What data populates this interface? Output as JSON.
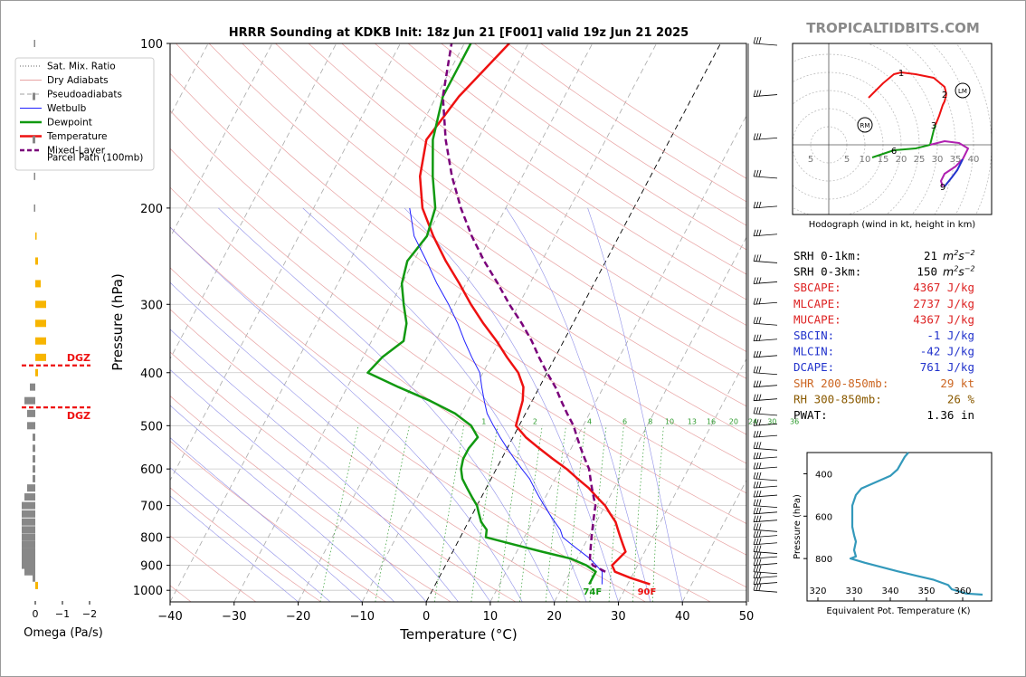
{
  "title": "HRRR Sounding at KDKB Init: 18z Jun 21 [F001] valid 19z Jun 21 2025",
  "brand": "TROPICALTIDBITS.COM",
  "legend": [
    {
      "label": "Sat. Mix. Ratio",
      "color": "#666666",
      "style": "dotted"
    },
    {
      "label": "Dry Adiabats",
      "color": "#e8a3a3",
      "style": "solid"
    },
    {
      "label": "Pseudoadiabats",
      "color": "#a0a0a0",
      "style": "dashed"
    },
    {
      "label": "Wetbulb",
      "color": "#1f1fff",
      "style": "solid"
    },
    {
      "label": "Dewpoint",
      "color": "#119911",
      "style": "thick"
    },
    {
      "label": "Temperature",
      "color": "#ee1111",
      "style": "thick"
    },
    {
      "label": "Mixed-Layer",
      "color": "#7a007a",
      "style": "thickdash"
    },
    {
      "label": "Parcel Path (100mb)",
      "color": "",
      "style": "none"
    }
  ],
  "indices": [
    {
      "label": "SRH 0-1km:",
      "value": "21",
      "unit": "m2s-2",
      "color": "#000000"
    },
    {
      "label": "SRH 0-3km:",
      "value": "150",
      "unit": "m2s-2",
      "color": "#000000"
    },
    {
      "label": "SBCAPE:",
      "value": "4367 J/kg",
      "unit": "",
      "color": "#dd2222"
    },
    {
      "label": "MLCAPE:",
      "value": "2737 J/kg",
      "unit": "",
      "color": "#dd2222"
    },
    {
      "label": "MUCAPE:",
      "value": "4367 J/kg",
      "unit": "",
      "color": "#dd2222"
    },
    {
      "label": "SBCIN:",
      "value": "-1 J/kg",
      "unit": "",
      "color": "#2233cc"
    },
    {
      "label": "MLCIN:",
      "value": "-42 J/kg",
      "unit": "",
      "color": "#2233cc"
    },
    {
      "label": "DCAPE:",
      "value": "761 J/kg",
      "unit": "",
      "color": "#2233cc"
    },
    {
      "label": "SHR 200-850mb:",
      "value": "29 kt",
      "unit": "",
      "color": "#cc6622"
    },
    {
      "label": "RH 300-850mb:",
      "value": "26 %",
      "unit": "",
      "color": "#8a5a00"
    },
    {
      "label": "PWAT:",
      "value": "1.36 in",
      "unit": "",
      "color": "#000000"
    }
  ],
  "hodograph": {
    "caption": "Hodograph (wind in kt, height in km)",
    "ring_labels": [
      "5",
      "5",
      "10",
      "15",
      "20",
      "25",
      "30",
      "35",
      "40"
    ],
    "height_labels": [
      {
        "label": "1",
        "u": 20,
        "v": 20
      },
      {
        "label": "2",
        "u": 32,
        "v": 14
      },
      {
        "label": "3",
        "u": 29,
        "v": 5.5
      },
      {
        "label": "6",
        "u": 18,
        "v": -1.5
      },
      {
        "label": "9",
        "u": 31.5,
        "v": -11.5
      }
    ],
    "storm_motion": [
      {
        "label": "RM",
        "u": 10,
        "v": 5.5
      },
      {
        "label": "LM",
        "u": 37,
        "v": 15
      }
    ],
    "segments": [
      {
        "color": "#ee1111",
        "points": [
          [
            11,
            13
          ],
          [
            15,
            17
          ],
          [
            18,
            19.5
          ],
          [
            20,
            20
          ],
          [
            24,
            19.5
          ],
          [
            29,
            18.5
          ],
          [
            32,
            16
          ],
          [
            32.5,
            14
          ]
        ]
      },
      {
        "color": "#ee1111",
        "points": [
          [
            32.5,
            14
          ],
          [
            32,
            12
          ],
          [
            31.5,
            11
          ],
          [
            30.5,
            8
          ],
          [
            29.5,
            5.5
          ]
        ]
      },
      {
        "color": "#119911",
        "points": [
          [
            29.5,
            5.5
          ],
          [
            29,
            4
          ],
          [
            28.5,
            2
          ],
          [
            28,
            0
          ],
          [
            24,
            -1
          ],
          [
            18,
            -1.5
          ],
          [
            15,
            -2.5
          ],
          [
            12,
            -3.5
          ]
        ]
      },
      {
        "color": "#b020b0",
        "points": [
          [
            28,
            0
          ],
          [
            32,
            1
          ],
          [
            36,
            0.5
          ],
          [
            38.5,
            -1
          ],
          [
            37,
            -4
          ],
          [
            35,
            -6
          ],
          [
            32,
            -8
          ],
          [
            31,
            -10
          ],
          [
            31.5,
            -11.5
          ]
        ]
      },
      {
        "color": "#2233cc",
        "points": [
          [
            37,
            -4
          ],
          [
            35.5,
            -7
          ],
          [
            34,
            -9
          ],
          [
            32,
            -11.5
          ]
        ]
      }
    ]
  },
  "panel_axes": {
    "pressure_label": "Pressure (hPa)",
    "temperature_label": "Temperature (°C)",
    "omega_label": "Omega (Pa/s)",
    "theta_label": "Equivalent Pot. Temperature (K)",
    "theta_pressure_label": "Pressure (hPa)"
  },
  "chart_data": {
    "type": "skew-t",
    "title": "HRRR Sounding at KDKB Init: 18z Jun 21 [F001] valid 19z Jun 21 2025",
    "xlabel": "Temperature (°C)",
    "ylabel": "Pressure (hPa)",
    "xlim": [
      -40,
      50
    ],
    "ylim": [
      1050,
      100
    ],
    "log_y": true,
    "x_ticks": [
      -40,
      -30,
      -20,
      -10,
      0,
      10,
      20,
      30,
      40,
      50
    ],
    "p_ticks": [
      100,
      200,
      300,
      400,
      500,
      600,
      700,
      800,
      900,
      1000
    ],
    "skew_per_decade": 45,
    "mixing_ratio_labels": [
      "1",
      "2",
      "4",
      "6",
      "8",
      "10",
      "13",
      "16",
      "20",
      "24",
      "30",
      "36"
    ],
    "mixing_ratio_label_x": [
      -5.5,
      2.5,
      11,
      16.5,
      20.5,
      23.5,
      27,
      30,
      33.5,
      36.5,
      39.5,
      43
    ],
    "surface_labels": [
      {
        "text": "74F",
        "x": 25,
        "color": "#119911"
      },
      {
        "text": "90F",
        "x": 33.5,
        "color": "#ee1111"
      }
    ],
    "series": [
      {
        "name": "Temperature",
        "color": "#ee1111",
        "width": 2.5,
        "points": [
          [
            33.5,
            975
          ],
          [
            30,
            950
          ],
          [
            27,
            925
          ],
          [
            26,
            900
          ],
          [
            26.5,
            875
          ],
          [
            27,
            850
          ],
          [
            26,
            825
          ],
          [
            25,
            800
          ],
          [
            24,
            775
          ],
          [
            23,
            750
          ],
          [
            21.5,
            725
          ],
          [
            20,
            700
          ],
          [
            18,
            675
          ],
          [
            16,
            650
          ],
          [
            13.5,
            625
          ],
          [
            11,
            600
          ],
          [
            8,
            575
          ],
          [
            5,
            550
          ],
          [
            2,
            525
          ],
          [
            -0.5,
            500
          ],
          [
            -1,
            475
          ],
          [
            -1.5,
            450
          ],
          [
            -2.5,
            425
          ],
          [
            -4.5,
            400
          ],
          [
            -7.5,
            375
          ],
          [
            -10.5,
            350
          ],
          [
            -14,
            325
          ],
          [
            -17.5,
            300
          ],
          [
            -21,
            275
          ],
          [
            -25,
            250
          ],
          [
            -29,
            225
          ],
          [
            -33,
            200
          ],
          [
            -36,
            175
          ],
          [
            -38,
            150
          ],
          [
            -36.5,
            125
          ],
          [
            -33,
            100
          ]
        ]
      },
      {
        "name": "Dewpoint",
        "color": "#119911",
        "width": 2.5,
        "points": [
          [
            24,
            975
          ],
          [
            24,
            950
          ],
          [
            24,
            925
          ],
          [
            22,
            900
          ],
          [
            19,
            875
          ],
          [
            14,
            850
          ],
          [
            9,
            825
          ],
          [
            4,
            800
          ],
          [
            3.5,
            775
          ],
          [
            2,
            750
          ],
          [
            1,
            725
          ],
          [
            0,
            700
          ],
          [
            -1.5,
            675
          ],
          [
            -3,
            650
          ],
          [
            -4.5,
            625
          ],
          [
            -5.5,
            600
          ],
          [
            -6,
            575
          ],
          [
            -6,
            550
          ],
          [
            -5.5,
            525
          ],
          [
            -7.5,
            500
          ],
          [
            -11,
            475
          ],
          [
            -16,
            450
          ],
          [
            -22,
            425
          ],
          [
            -28,
            400
          ],
          [
            -27,
            375
          ],
          [
            -25,
            350
          ],
          [
            -26,
            325
          ],
          [
            -28,
            300
          ],
          [
            -30,
            275
          ],
          [
            -31,
            250
          ],
          [
            -30,
            225
          ],
          [
            -31,
            200
          ],
          [
            -34,
            175
          ],
          [
            -37,
            150
          ],
          [
            -39,
            125
          ],
          [
            -39,
            100
          ]
        ]
      },
      {
        "name": "Wetbulb",
        "color": "#1f1fff",
        "width": 1,
        "points": [
          [
            26,
            975
          ],
          [
            25,
            925
          ],
          [
            22,
            875
          ],
          [
            18,
            825
          ],
          [
            16,
            800
          ],
          [
            15,
            775
          ],
          [
            13.5,
            750
          ],
          [
            12,
            725
          ],
          [
            10.5,
            700
          ],
          [
            9,
            675
          ],
          [
            7.5,
            650
          ],
          [
            6,
            625
          ],
          [
            4,
            600
          ],
          [
            2,
            575
          ],
          [
            0,
            550
          ],
          [
            -2,
            525
          ],
          [
            -4,
            500
          ],
          [
            -6,
            475
          ],
          [
            -7.5,
            450
          ],
          [
            -9,
            425
          ],
          [
            -10.5,
            400
          ],
          [
            -13,
            375
          ],
          [
            -15.5,
            350
          ],
          [
            -18,
            325
          ],
          [
            -21,
            300
          ],
          [
            -24.5,
            275
          ],
          [
            -28,
            250
          ],
          [
            -32,
            225
          ],
          [
            -35,
            200
          ]
        ]
      },
      {
        "name": "Parcel Path (100mb)",
        "color": "#7a007a",
        "width": 2.5,
        "dash": "7,4",
        "points": [
          [
            25.5,
            925
          ],
          [
            23,
            900
          ],
          [
            22,
            875
          ],
          [
            21.5,
            850
          ],
          [
            21,
            825
          ],
          [
            20.5,
            800
          ],
          [
            20,
            775
          ],
          [
            19.5,
            750
          ],
          [
            19,
            725
          ],
          [
            18.5,
            700
          ],
          [
            17.5,
            675
          ],
          [
            16.5,
            650
          ],
          [
            15.5,
            625
          ],
          [
            14.5,
            600
          ],
          [
            13,
            575
          ],
          [
            11.5,
            550
          ],
          [
            10,
            525
          ],
          [
            8.5,
            500
          ],
          [
            6.5,
            475
          ],
          [
            4.5,
            450
          ],
          [
            2.5,
            425
          ],
          [
            0,
            400
          ],
          [
            -2.5,
            375
          ],
          [
            -5,
            350
          ],
          [
            -8,
            325
          ],
          [
            -11.5,
            300
          ],
          [
            -15,
            275
          ],
          [
            -19,
            250
          ],
          [
            -23,
            225
          ],
          [
            -27,
            200
          ],
          [
            -31,
            175
          ],
          [
            -35,
            150
          ],
          [
            -39,
            125
          ],
          [
            -42,
            100
          ]
        ]
      }
    ],
    "wind_barb_levels": [
      1000,
      975,
      950,
      925,
      900,
      875,
      850,
      825,
      800,
      775,
      750,
      725,
      700,
      675,
      650,
      625,
      600,
      575,
      550,
      525,
      500,
      475,
      450,
      425,
      400,
      375,
      350,
      325,
      300,
      275,
      250,
      225,
      200,
      175,
      150,
      125,
      100
    ],
    "omega": {
      "xlabel": "Omega (Pa/s)",
      "ticks": [
        0,
        -1,
        -2
      ],
      "dgz_label": "DGZ",
      "dgz_levels": [
        388,
        463
      ],
      "bars": [
        {
          "p": 980,
          "v": -0.1
        },
        {
          "p": 950,
          "v": 0.1
        },
        {
          "p": 925,
          "v": 0.4
        },
        {
          "p": 900,
          "v": 0.5
        },
        {
          "p": 875,
          "v": 0.5
        },
        {
          "p": 850,
          "v": 0.5
        },
        {
          "p": 825,
          "v": 0.5
        },
        {
          "p": 800,
          "v": 0.5
        },
        {
          "p": 775,
          "v": 0.5
        },
        {
          "p": 750,
          "v": 0.5
        },
        {
          "p": 725,
          "v": 0.5
        },
        {
          "p": 700,
          "v": 0.5
        },
        {
          "p": 675,
          "v": 0.4
        },
        {
          "p": 650,
          "v": 0.3
        },
        {
          "p": 625,
          "v": 0.1
        },
        {
          "p": 600,
          "v": 0.1
        },
        {
          "p": 575,
          "v": 0.1
        },
        {
          "p": 550,
          "v": 0.1
        },
        {
          "p": 525,
          "v": 0.1
        },
        {
          "p": 500,
          "v": 0.3
        },
        {
          "p": 475,
          "v": 0.3
        },
        {
          "p": 450,
          "v": 0.4
        },
        {
          "p": 425,
          "v": 0.2
        },
        {
          "p": 400,
          "v": -0.1
        },
        {
          "p": 375,
          "v": -0.4
        },
        {
          "p": 350,
          "v": -0.4
        },
        {
          "p": 325,
          "v": -0.4
        },
        {
          "p": 300,
          "v": -0.4
        },
        {
          "p": 275,
          "v": -0.2
        },
        {
          "p": 250,
          "v": -0.1
        },
        {
          "p": 225,
          "v": -0.05
        },
        {
          "p": 200,
          "v": 0.05
        },
        {
          "p": 175,
          "v": 0.05
        },
        {
          "p": 150,
          "v": 0.1
        },
        {
          "p": 125,
          "v": 0.1
        },
        {
          "p": 100,
          "v": 0.05
        }
      ]
    },
    "theta_e": {
      "xlabel": "Equivalent Pot. Temperature (K)",
      "ylabel": "Pressure (hPa)",
      "xlim": [
        317,
        368
      ],
      "ylim": [
        1000,
        300
      ],
      "x_ticks": [
        320,
        330,
        340,
        350,
        360
      ],
      "p_ticks": [
        400,
        600,
        800
      ],
      "line_color": "#3399bb",
      "points": [
        [
          365.5,
          970
        ],
        [
          361,
          965
        ],
        [
          357,
          945
        ],
        [
          356,
          925
        ],
        [
          352,
          900
        ],
        [
          342,
          860
        ],
        [
          333,
          820
        ],
        [
          329,
          800
        ],
        [
          330.5,
          790
        ],
        [
          330,
          760
        ],
        [
          330.5,
          720
        ],
        [
          330,
          690
        ],
        [
          329.5,
          650
        ],
        [
          329.5,
          600
        ],
        [
          329.5,
          550
        ],
        [
          330.5,
          500
        ],
        [
          332,
          470
        ],
        [
          336,
          440
        ],
        [
          340,
          410
        ],
        [
          342,
          380
        ],
        [
          343,
          350
        ],
        [
          344,
          320
        ],
        [
          345,
          300
        ]
      ]
    }
  }
}
